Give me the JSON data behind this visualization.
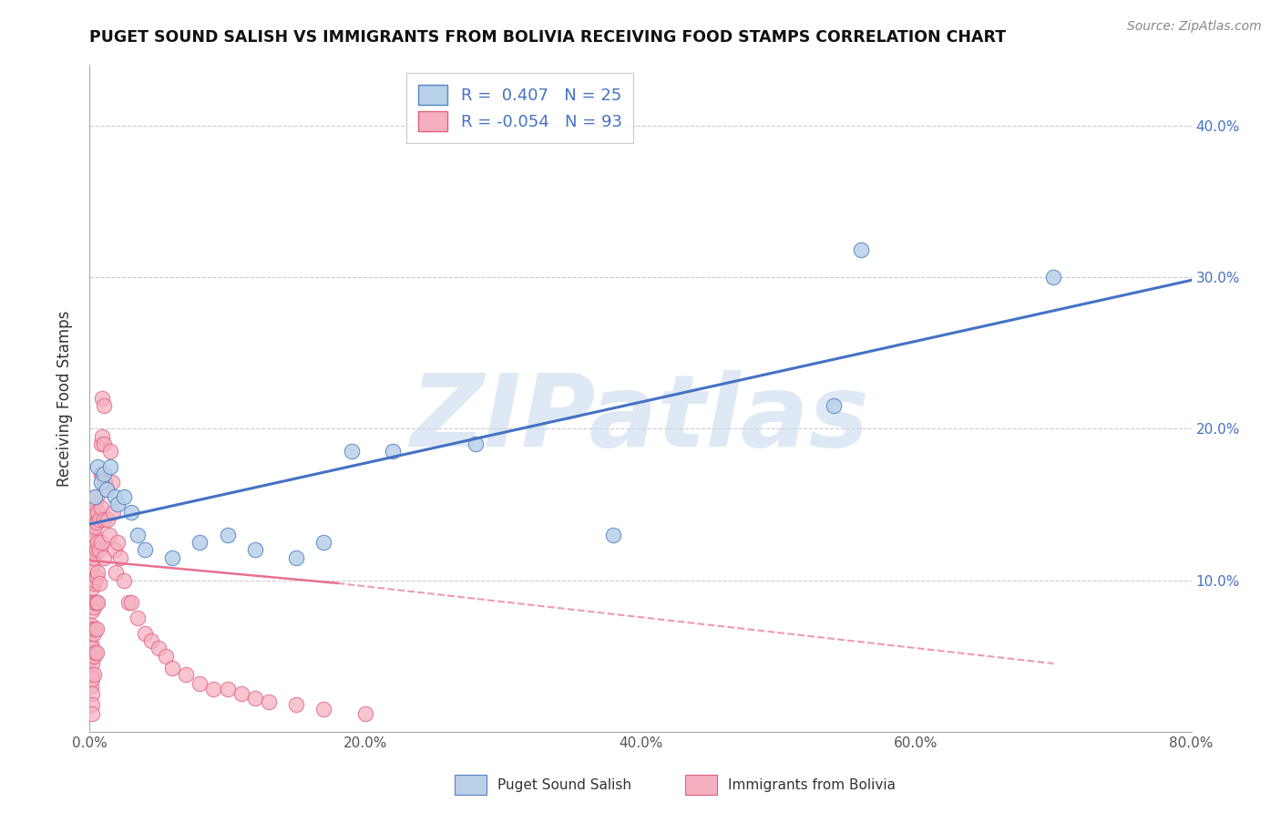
{
  "title": "PUGET SOUND SALISH VS IMMIGRANTS FROM BOLIVIA RECEIVING FOOD STAMPS CORRELATION CHART",
  "source": "Source: ZipAtlas.com",
  "ylabel": "Receiving Food Stamps",
  "xlabel": "",
  "xlim": [
    0.0,
    0.8
  ],
  "ylim": [
    0.0,
    0.44
  ],
  "yticks": [
    0.0,
    0.1,
    0.2,
    0.3,
    0.4
  ],
  "ytick_labels": [
    "",
    "10.0%",
    "20.0%",
    "30.0%",
    "40.0%"
  ],
  "xticks": [
    0.0,
    0.2,
    0.4,
    0.6,
    0.8
  ],
  "xtick_labels": [
    "0.0%",
    "20.0%",
    "40.0%",
    "60.0%",
    "80.0%"
  ],
  "blue_R": 0.407,
  "blue_N": 25,
  "pink_R": -0.054,
  "pink_N": 93,
  "blue_color": "#b8d0e8",
  "pink_color": "#f5b0c0",
  "blue_edge_color": "#5585c5",
  "pink_edge_color": "#e06080",
  "blue_line_color": "#4472c4",
  "pink_line_color": "#e87090",
  "legend_label_blue": "Puget Sound Salish",
  "legend_label_pink": "Immigrants from Bolivia",
  "watermark": "ZIPatlas",
  "blue_scatter_x": [
    0.004,
    0.006,
    0.008,
    0.01,
    0.012,
    0.015,
    0.018,
    0.02,
    0.025,
    0.03,
    0.035,
    0.04,
    0.06,
    0.08,
    0.1,
    0.12,
    0.15,
    0.17,
    0.19,
    0.22,
    0.28,
    0.38,
    0.54,
    0.56,
    0.7
  ],
  "blue_scatter_y": [
    0.155,
    0.175,
    0.165,
    0.17,
    0.16,
    0.175,
    0.155,
    0.15,
    0.155,
    0.145,
    0.13,
    0.12,
    0.115,
    0.125,
    0.13,
    0.12,
    0.115,
    0.125,
    0.185,
    0.185,
    0.19,
    0.13,
    0.215,
    0.318,
    0.3
  ],
  "pink_scatter_x": [
    0.001,
    0.001,
    0.001,
    0.001,
    0.001,
    0.001,
    0.001,
    0.001,
    0.001,
    0.001,
    0.002,
    0.002,
    0.002,
    0.002,
    0.002,
    0.002,
    0.002,
    0.002,
    0.002,
    0.002,
    0.002,
    0.002,
    0.003,
    0.003,
    0.003,
    0.003,
    0.003,
    0.003,
    0.003,
    0.003,
    0.004,
    0.004,
    0.004,
    0.004,
    0.004,
    0.004,
    0.004,
    0.005,
    0.005,
    0.005,
    0.005,
    0.005,
    0.005,
    0.005,
    0.006,
    0.006,
    0.006,
    0.006,
    0.007,
    0.007,
    0.007,
    0.008,
    0.008,
    0.008,
    0.008,
    0.009,
    0.009,
    0.009,
    0.01,
    0.01,
    0.01,
    0.01,
    0.01,
    0.011,
    0.012,
    0.013,
    0.014,
    0.015,
    0.016,
    0.017,
    0.018,
    0.019,
    0.02,
    0.022,
    0.025,
    0.028,
    0.03,
    0.035,
    0.04,
    0.045,
    0.05,
    0.055,
    0.06,
    0.07,
    0.08,
    0.09,
    0.1,
    0.11,
    0.12,
    0.13,
    0.15,
    0.17,
    0.2
  ],
  "pink_scatter_y": [
    0.145,
    0.13,
    0.115,
    0.1,
    0.085,
    0.07,
    0.058,
    0.048,
    0.038,
    0.03,
    0.14,
    0.125,
    0.11,
    0.095,
    0.08,
    0.068,
    0.055,
    0.045,
    0.035,
    0.025,
    0.018,
    0.012,
    0.145,
    0.13,
    0.115,
    0.098,
    0.082,
    0.065,
    0.05,
    0.038,
    0.15,
    0.135,
    0.118,
    0.1,
    0.085,
    0.068,
    0.052,
    0.155,
    0.138,
    0.12,
    0.102,
    0.085,
    0.068,
    0.052,
    0.145,
    0.125,
    0.105,
    0.085,
    0.14,
    0.12,
    0.098,
    0.19,
    0.17,
    0.148,
    0.125,
    0.22,
    0.195,
    0.17,
    0.215,
    0.19,
    0.165,
    0.14,
    0.115,
    0.165,
    0.16,
    0.14,
    0.13,
    0.185,
    0.165,
    0.145,
    0.12,
    0.105,
    0.125,
    0.115,
    0.1,
    0.085,
    0.085,
    0.075,
    0.065,
    0.06,
    0.055,
    0.05,
    0.042,
    0.038,
    0.032,
    0.028,
    0.028,
    0.025,
    0.022,
    0.02,
    0.018,
    0.015,
    0.012
  ],
  "blue_line_x0": 0.0,
  "blue_line_y0": 0.137,
  "blue_line_x1": 0.8,
  "blue_line_y1": 0.298,
  "pink_line_solid_x0": 0.0,
  "pink_line_solid_y0": 0.113,
  "pink_line_solid_x1": 0.18,
  "pink_line_solid_y1": 0.098,
  "pink_line_dash_x0": 0.18,
  "pink_line_dash_y0": 0.098,
  "pink_line_dash_x1": 0.7,
  "pink_line_dash_y1": 0.045
}
